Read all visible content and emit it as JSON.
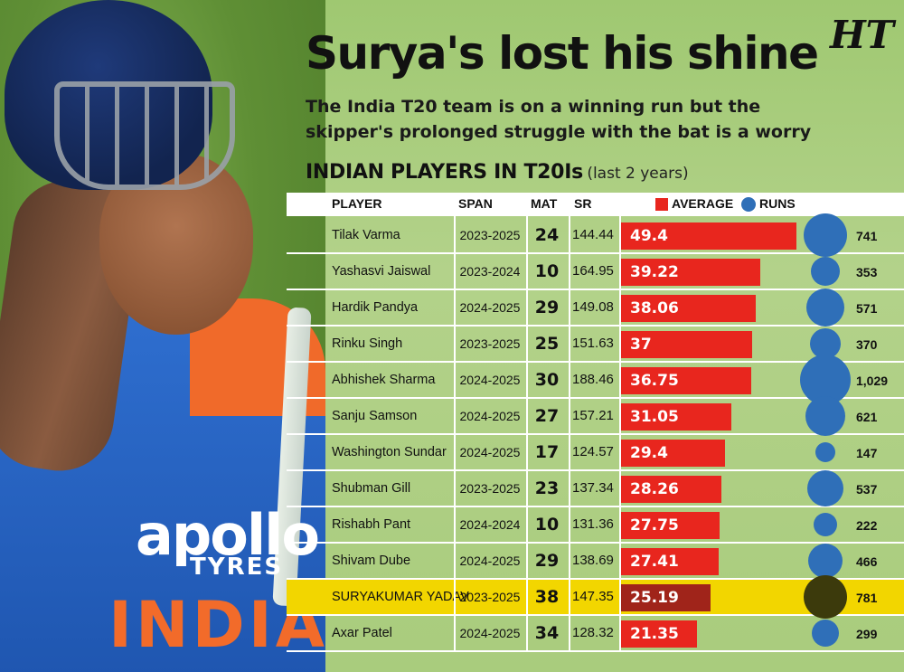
{
  "title": "Surya's lost his shine",
  "logo_text": "HT",
  "subtitle": "The India T20 team is on a winning run but the skipper's prolonged struggle with the bat is a worry",
  "section_title": "INDIAN PLAYERS IN T20Is",
  "section_subtitle": "(last 2 years)",
  "photo": {
    "jersey_brand": "apollo",
    "jersey_brand_sub": "TYRES",
    "jersey_country": "INDIA"
  },
  "colors": {
    "average_bar": "#e8261e",
    "average_bar_highlight": "#a0241a",
    "runs_bubble": "#2f6fb8",
    "runs_bubble_highlight": "#3c3a0c",
    "highlight_row": "#f2d600",
    "background": "#a9cc7d"
  },
  "table_headers": {
    "player": "PLAYER",
    "span": "SPAN",
    "mat": "MAT",
    "sr": "SR",
    "average": "AVERAGE",
    "runs": "RUNS"
  },
  "chart_data": {
    "type": "table",
    "columns": [
      "PLAYER",
      "SPAN",
      "MAT",
      "SR",
      "AVERAGE",
      "RUNS"
    ],
    "highlight_player": "SURYAKUMAR YADAV",
    "rows": [
      {
        "player": "Tilak Varma",
        "span": "2023-2025",
        "mat": "24",
        "sr": "144.44",
        "average": 49.4,
        "average_label": "49.4",
        "runs": 741,
        "runs_label": "741"
      },
      {
        "player": "Yashasvi Jaiswal",
        "span": "2023-2024",
        "mat": "10",
        "sr": "164.95",
        "average": 39.22,
        "average_label": "39.22",
        "runs": 353,
        "runs_label": "353"
      },
      {
        "player": "Hardik Pandya",
        "span": "2024-2025",
        "mat": "29",
        "sr": "149.08",
        "average": 38.06,
        "average_label": "38.06",
        "runs": 571,
        "runs_label": "571"
      },
      {
        "player": "Rinku Singh",
        "span": "2023-2025",
        "mat": "25",
        "sr": "151.63",
        "average": 37,
        "average_label": "37",
        "runs": 370,
        "runs_label": "370"
      },
      {
        "player": "Abhishek Sharma",
        "span": "2024-2025",
        "mat": "30",
        "sr": "188.46",
        "average": 36.75,
        "average_label": "36.75",
        "runs": 1029,
        "runs_label": "1,029"
      },
      {
        "player": "Sanju Samson",
        "span": "2024-2025",
        "mat": "27",
        "sr": "157.21",
        "average": 31.05,
        "average_label": "31.05",
        "runs": 621,
        "runs_label": "621"
      },
      {
        "player": "Washington Sundar",
        "span": "2024-2025",
        "mat": "17",
        "sr": "124.57",
        "average": 29.4,
        "average_label": "29.4",
        "runs": 147,
        "runs_label": "147"
      },
      {
        "player": "Shubman Gill",
        "span": "2023-2025",
        "mat": "23",
        "sr": "137.34",
        "average": 28.26,
        "average_label": "28.26",
        "runs": 537,
        "runs_label": "537"
      },
      {
        "player": "Rishabh Pant",
        "span": "2024-2024",
        "mat": "10",
        "sr": "131.36",
        "average": 27.75,
        "average_label": "27.75",
        "runs": 222,
        "runs_label": "222"
      },
      {
        "player": "Shivam Dube",
        "span": "2024-2025",
        "mat": "29",
        "sr": "138.69",
        "average": 27.41,
        "average_label": "27.41",
        "runs": 466,
        "runs_label": "466"
      },
      {
        "player": "SURYAKUMAR YADAV",
        "span": "2023-2025",
        "mat": "38",
        "sr": "147.35",
        "average": 25.19,
        "average_label": "25.19",
        "runs": 781,
        "runs_label": "781"
      },
      {
        "player": "Axar Patel",
        "span": "2024-2025",
        "mat": "34",
        "sr": "128.32",
        "average": 21.35,
        "average_label": "21.35",
        "runs": 299,
        "runs_label": "299"
      }
    ]
  }
}
